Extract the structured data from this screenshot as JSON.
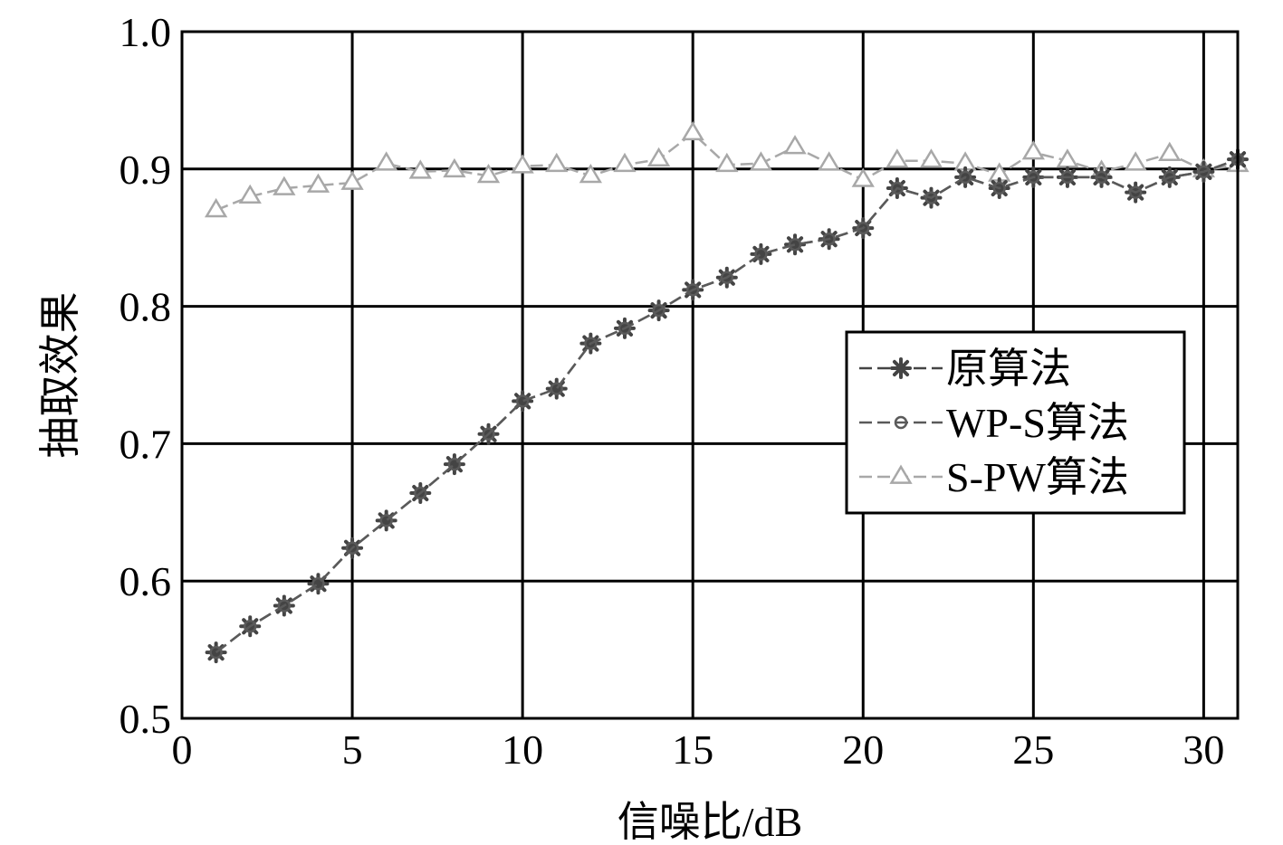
{
  "chart_data": {
    "type": "line",
    "xlabel": "信噪比/dB",
    "ylabel": "抽取效果",
    "xlim": [
      0,
      31
    ],
    "ylim": [
      0.5,
      1.0
    ],
    "xticks": [
      0,
      5,
      10,
      15,
      20,
      25,
      30
    ],
    "xtick_labels": [
      "0",
      "5",
      "10",
      "15",
      "20",
      "25",
      "30"
    ],
    "yticks": [
      0.5,
      0.6,
      0.7,
      0.8,
      0.9,
      1.0
    ],
    "ytick_labels": [
      "0.5",
      "0.6",
      "0.7",
      "0.8",
      "0.9",
      "1.0"
    ],
    "grid": true,
    "legend_position": "right",
    "x": [
      1,
      2,
      3,
      4,
      5,
      6,
      7,
      8,
      9,
      10,
      11,
      12,
      13,
      14,
      15,
      16,
      17,
      18,
      19,
      20,
      21,
      22,
      23,
      24,
      25,
      26,
      27,
      28,
      29,
      30,
      31
    ],
    "series": [
      {
        "name": "原算法",
        "marker": "star",
        "color": "#444444",
        "values": [
          0.548,
          0.567,
          0.582,
          0.598,
          0.624,
          0.644,
          0.664,
          0.685,
          0.707,
          0.731,
          0.74,
          0.773,
          0.784,
          0.797,
          0.812,
          0.821,
          0.838,
          0.845,
          0.849,
          0.857,
          0.886,
          0.879,
          0.894,
          0.886,
          0.894,
          0.894,
          0.894,
          0.883,
          0.894,
          0.898,
          0.907
        ]
      },
      {
        "name": "WP-S算法",
        "marker": "circle",
        "color": "#5a5a5a",
        "values": [
          0.548,
          0.567,
          0.582,
          0.598,
          0.624,
          0.644,
          0.664,
          0.685,
          0.707,
          0.731,
          0.74,
          0.773,
          0.784,
          0.797,
          0.812,
          0.821,
          0.838,
          0.845,
          0.849,
          0.857,
          0.886,
          0.879,
          0.894,
          0.886,
          0.894,
          0.894,
          0.894,
          0.883,
          0.894,
          0.898,
          0.907
        ]
      },
      {
        "name": "S-PW算法",
        "marker": "triangle",
        "color": "#a8a8a8",
        "values": [
          0.87,
          0.88,
          0.886,
          0.888,
          0.89,
          0.904,
          0.898,
          0.899,
          0.895,
          0.902,
          0.903,
          0.895,
          0.903,
          0.907,
          0.926,
          0.903,
          0.904,
          0.916,
          0.904,
          0.892,
          0.906,
          0.906,
          0.904,
          0.896,
          0.912,
          0.906,
          0.898,
          0.904,
          0.911,
          0.899,
          0.903
        ]
      }
    ]
  }
}
